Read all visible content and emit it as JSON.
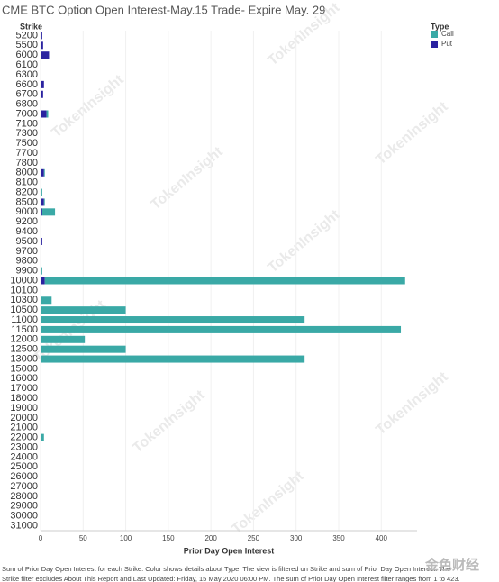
{
  "chart_data": {
    "type": "bar",
    "orientation": "horizontal",
    "stacked": true,
    "title": "CME BTC Option Open Interest-May.15 Trade- Expire May. 29",
    "y_label": "Strike",
    "x_label": "Prior Day Open Interest",
    "legend_title": "Type",
    "categories": [
      "5200",
      "5500",
      "6000",
      "6100",
      "6300",
      "6600",
      "6700",
      "6800",
      "7000",
      "7100",
      "7300",
      "7500",
      "7700",
      "7800",
      "8000",
      "8100",
      "8200",
      "8500",
      "9000",
      "9200",
      "9400",
      "9500",
      "9700",
      "9800",
      "9900",
      "10000",
      "10100",
      "10300",
      "10500",
      "11000",
      "11500",
      "12000",
      "12500",
      "13000",
      "15000",
      "16000",
      "17000",
      "18000",
      "19000",
      "20000",
      "21000",
      "22000",
      "23000",
      "24000",
      "25000",
      "26000",
      "27000",
      "28000",
      "29000",
      "30000",
      "31000"
    ],
    "series": [
      {
        "name": "Call",
        "color": "#3aa9a6",
        "values": [
          null,
          null,
          null,
          null,
          null,
          null,
          null,
          null,
          2,
          null,
          null,
          null,
          null,
          null,
          1,
          null,
          2,
          1,
          15,
          null,
          null,
          null,
          null,
          null,
          2,
          423,
          1,
          13,
          100,
          310,
          423,
          52,
          100,
          310,
          1,
          1,
          1,
          1,
          1,
          1,
          1,
          4,
          1,
          1,
          1,
          1,
          1,
          1,
          1,
          1,
          1
        ]
      },
      {
        "name": "Put",
        "color": "#2a22a0",
        "values": [
          2,
          3,
          10,
          1,
          1,
          4,
          3,
          1,
          7,
          1,
          1,
          1,
          1,
          1,
          4,
          1,
          null,
          4,
          2,
          1,
          1,
          2,
          1,
          1,
          null,
          5,
          null,
          null,
          null,
          null,
          null,
          null,
          null,
          null,
          null,
          null,
          null,
          null,
          null,
          null,
          null,
          null,
          null,
          null,
          null,
          null,
          null,
          null,
          null,
          null,
          null
        ]
      }
    ],
    "xlim": [
      0,
      442
    ],
    "xticks": [
      0,
      50,
      100,
      150,
      200,
      250,
      300,
      350,
      400
    ],
    "footnote": [
      "Sum of Prior Day Open Interest for each Strike.  Color shows details about Type. The view is filtered on Strike and sum of Prior Day Open Interest. The",
      "Strike filter excludes About This Report and Last Updated: Friday, 15 May 2020 06:00 PM. The sum of Prior Day Open Interest filter ranges from 1 to 423."
    ],
    "watermark": "TokenInsight",
    "logo": "金色财经"
  }
}
